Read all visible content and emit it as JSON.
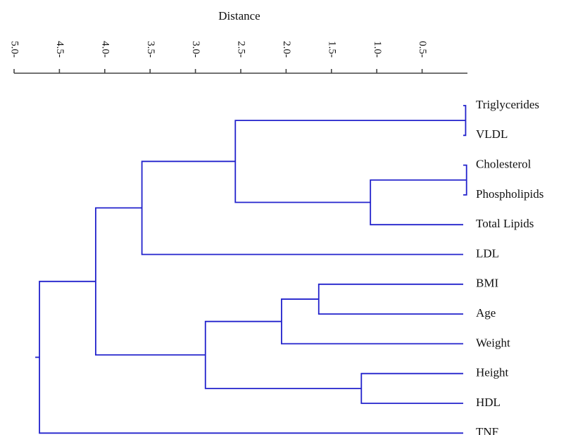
{
  "chart_data": {
    "type": "dendrogram",
    "xlabel": "Distance",
    "axis_orientation": "top",
    "xlim": [
      5.0,
      0.0
    ],
    "ticks": [
      {
        "value": 5.0,
        "label": "5.0-"
      },
      {
        "value": 4.5,
        "label": "4.5-"
      },
      {
        "value": 4.0,
        "label": "4.0-"
      },
      {
        "value": 3.5,
        "label": "3.5-"
      },
      {
        "value": 3.0,
        "label": "3.0-"
      },
      {
        "value": 2.5,
        "label": "2.5-"
      },
      {
        "value": 2.0,
        "label": "2.0-"
      },
      {
        "value": 1.5,
        "label": "1.5-"
      },
      {
        "value": 1.0,
        "label": "1.0-"
      },
      {
        "value": 0.5,
        "label": "0.5-"
      }
    ],
    "leaves": [
      "Triglycerides",
      "VLDL",
      "Cholesterol",
      "Phospholipids",
      "Total Lipids",
      "LDL",
      "BMI",
      "Age",
      "Weight",
      "Height",
      "HDL",
      "TNF"
    ],
    "merges": [
      {
        "a": "Triglycerides",
        "b": "VLDL",
        "distance": 0.02
      },
      {
        "a": "Cholesterol",
        "b": "Phospholipids",
        "distance": 0.01
      },
      {
        "a": "m2",
        "b": "Total Lipids",
        "distance": 1.07
      },
      {
        "a": "m1",
        "b": "m3",
        "distance": 2.56
      },
      {
        "a": "m4",
        "b": "LDL",
        "distance": 3.59
      },
      {
        "a": "BMI",
        "b": "Age",
        "distance": 1.64
      },
      {
        "a": "m6",
        "b": "Weight",
        "distance": 2.05
      },
      {
        "a": "Height",
        "b": "HDL",
        "distance": 1.17
      },
      {
        "a": "m7",
        "b": "m8",
        "distance": 2.89
      },
      {
        "a": "m5",
        "b": "m9",
        "distance": 4.1
      },
      {
        "a": "m10",
        "b": "TNF",
        "distance": 4.72
      }
    ],
    "colors": {
      "link": "#2222cc",
      "axis": "#444444",
      "text": "#111111"
    }
  }
}
